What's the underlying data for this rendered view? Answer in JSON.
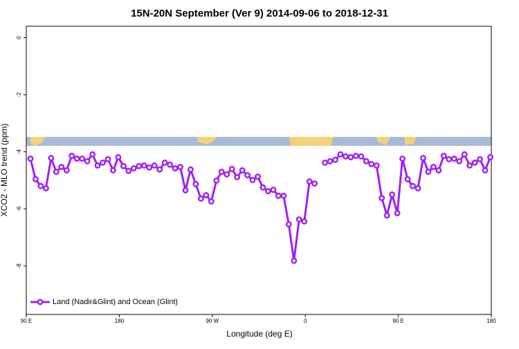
{
  "chart_data": {
    "type": "line",
    "title": "15N-20N September (Ver 9)   2014-09-06 to 2018-12-31",
    "xlabel": "Longitude (deg E)",
    "ylabel": "XCO2 - MLO trend (ppm)",
    "xlim": [
      90,
      540
    ],
    "ylim": [
      -9.7,
      0.4
    ],
    "xticks": [
      {
        "value": 90,
        "label": "90 E"
      },
      180,
      {
        "value": 270,
        "label": "90 W"
      },
      {
        "value": 360,
        "label": "0"
      },
      {
        "value": 450,
        "label": "90 E"
      },
      {
        "value": 540,
        "label": "180"
      }
    ],
    "yticks": [
      0,
      -2,
      -4,
      -6,
      -8
    ],
    "legend": "bottom-left",
    "x": [
      94,
      99,
      104,
      109,
      114,
      119,
      124,
      129,
      134,
      139,
      144,
      149,
      154,
      159,
      164,
      169,
      174,
      179,
      184,
      189,
      194,
      199,
      204,
      209,
      214,
      219,
      224,
      229,
      234,
      239,
      244,
      249,
      254,
      259,
      264,
      269,
      274,
      279,
      284,
      289,
      294,
      299,
      304,
      309,
      314,
      319,
      324,
      329,
      334,
      339,
      344,
      349,
      354,
      359,
      364,
      369,
      374,
      379,
      384,
      389,
      394,
      399,
      404,
      409,
      414,
      419,
      424,
      429,
      434,
      439,
      444,
      449,
      454,
      459,
      464,
      469,
      474,
      479,
      484,
      489,
      494,
      499,
      504,
      509,
      514,
      519,
      524,
      529,
      534,
      539
    ],
    "series": [
      {
        "name": "Land (Nadir&Glint) and Ocean (Glint)",
        "color": "#a020f0",
        "values": [
          -4.24,
          -4.96,
          -5.2,
          -5.28,
          -4.22,
          -4.7,
          -4.53,
          -4.65,
          -4.14,
          -4.24,
          -4.24,
          -4.33,
          -4.09,
          -4.48,
          -4.38,
          -4.26,
          -4.65,
          -4.19,
          -4.5,
          -4.67,
          -4.58,
          -4.5,
          -4.48,
          -4.55,
          -4.48,
          -4.62,
          -4.38,
          -4.45,
          -4.58,
          -4.53,
          -5.35,
          -4.62,
          -5.13,
          -5.64,
          -5.52,
          -5.74,
          -5.01,
          -4.7,
          -4.79,
          -4.6,
          -4.89,
          -4.65,
          -4.82,
          -4.99,
          -4.87,
          -5.25,
          -5.38,
          -5.33,
          -5.54,
          -5.54,
          -6.54,
          -7.82,
          -6.37,
          -6.44,
          -5.04,
          -5.11,
          null,
          -4.38,
          -4.33,
          -4.28,
          -4.09,
          -4.16,
          -4.19,
          -4.14,
          -4.16,
          -4.33,
          -4.43,
          -4.48,
          -5.62,
          -6.23,
          -5.5,
          -6.15,
          -4.24,
          -4.96,
          -5.2,
          -5.28,
          -4.22,
          -4.7,
          -4.53,
          -4.65,
          -4.14,
          -4.26,
          -4.24,
          -4.33,
          -4.09,
          -4.48,
          -4.38,
          -4.26,
          -4.65,
          -4.19
        ]
      }
    ]
  }
}
